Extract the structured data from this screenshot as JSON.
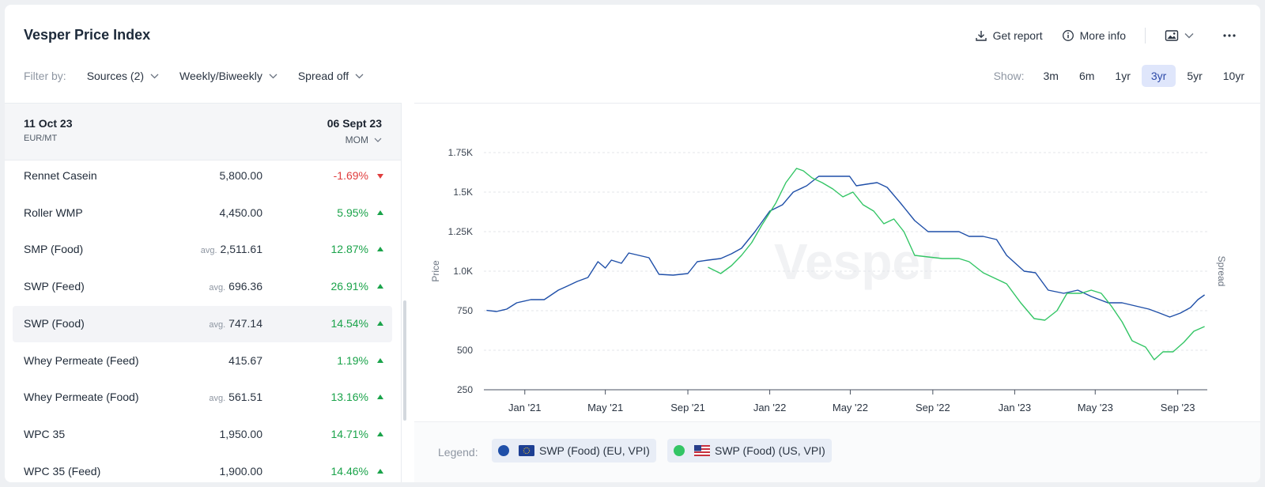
{
  "header": {
    "title": "Vesper Price Index",
    "get_report": "Get report",
    "more_info": "More info"
  },
  "filters": {
    "label": "Filter by:",
    "sources": "Sources (2)",
    "frequency": "Weekly/Biweekly",
    "spread": "Spread off"
  },
  "range": {
    "label": "Show:",
    "options": [
      "3m",
      "6m",
      "1yr",
      "3yr",
      "5yr",
      "10yr"
    ],
    "active": "3yr"
  },
  "table": {
    "date_current": "11 Oct 23",
    "unit": "EUR/MT",
    "date_compare": "06 Sept 23",
    "compare_mode": "MOM",
    "avg_label": "avg.",
    "rows": [
      {
        "name": "Rennet Casein",
        "avg": false,
        "value": "5,800.00",
        "change": "-1.69%",
        "dir": "down"
      },
      {
        "name": "Roller WMP",
        "avg": false,
        "value": "4,450.00",
        "change": "5.95%",
        "dir": "up"
      },
      {
        "name": "SMP (Food)",
        "avg": true,
        "value": "2,511.61",
        "change": "12.87%",
        "dir": "up"
      },
      {
        "name": "SWP (Feed)",
        "avg": true,
        "value": "696.36",
        "change": "26.91%",
        "dir": "up"
      },
      {
        "name": "SWP (Food)",
        "avg": true,
        "value": "747.14",
        "change": "14.54%",
        "dir": "up",
        "selected": true
      },
      {
        "name": "Whey Permeate (Feed)",
        "avg": false,
        "value": "415.67",
        "change": "1.19%",
        "dir": "up"
      },
      {
        "name": "Whey Permeate (Food)",
        "avg": true,
        "value": "561.51",
        "change": "13.16%",
        "dir": "up"
      },
      {
        "name": "WPC 35",
        "avg": false,
        "value": "1,950.00",
        "change": "14.71%",
        "dir": "up"
      },
      {
        "name": "WPC 35 (Feed)",
        "avg": false,
        "value": "1,900.00",
        "change": "14.46%",
        "dir": "up"
      }
    ]
  },
  "chart_data": {
    "type": "line",
    "ylabel": "Price",
    "y2label": "Spread",
    "watermark": "Vesper",
    "ylim": [
      250,
      1750
    ],
    "yticks": [
      250,
      500,
      750,
      1000,
      1250,
      1500,
      1750
    ],
    "ytick_labels": [
      "250",
      "500",
      "750",
      "1.0K",
      "1.25K",
      "1.5K",
      "1.75K"
    ],
    "xlim": [
      "2020-11-01",
      "2023-10-15"
    ],
    "xticks": [
      "2021-01-01",
      "2021-05-01",
      "2021-09-01",
      "2022-01-01",
      "2022-05-01",
      "2022-09-01",
      "2023-01-01",
      "2023-05-01",
      "2023-09-01"
    ],
    "xtick_labels": [
      "Jan '21",
      "May '21",
      "Sep '21",
      "Jan '22",
      "May '22",
      "Sep '22",
      "Jan '23",
      "May '23",
      "Sep '23"
    ],
    "grid": "horizontal dashed",
    "series": [
      {
        "name": "SWP (Food) (EU, VPI)",
        "color": "#1f4fa8",
        "points": [
          [
            "2020-11-05",
            752
          ],
          [
            "2020-11-20",
            745
          ],
          [
            "2020-12-05",
            760
          ],
          [
            "2020-12-20",
            800
          ],
          [
            "2021-01-10",
            820
          ],
          [
            "2021-01-30",
            820
          ],
          [
            "2021-02-20",
            880
          ],
          [
            "2021-03-05",
            905
          ],
          [
            "2021-03-20",
            935
          ],
          [
            "2021-04-05",
            960
          ],
          [
            "2021-04-20",
            1060
          ],
          [
            "2021-05-01",
            1020
          ],
          [
            "2021-05-10",
            1070
          ],
          [
            "2021-05-25",
            1050
          ],
          [
            "2021-06-05",
            1115
          ],
          [
            "2021-06-20",
            1100
          ],
          [
            "2021-07-05",
            1085
          ],
          [
            "2021-07-20",
            980
          ],
          [
            "2021-08-10",
            975
          ],
          [
            "2021-09-01",
            985
          ],
          [
            "2021-09-15",
            1060
          ],
          [
            "2021-10-01",
            1070
          ],
          [
            "2021-10-20",
            1080
          ],
          [
            "2021-11-05",
            1110
          ],
          [
            "2021-11-20",
            1145
          ],
          [
            "2021-12-10",
            1250
          ],
          [
            "2022-01-01",
            1380
          ],
          [
            "2022-01-20",
            1420
          ],
          [
            "2022-02-05",
            1500
          ],
          [
            "2022-02-25",
            1540
          ],
          [
            "2022-03-15",
            1600
          ],
          [
            "2022-04-15",
            1600
          ],
          [
            "2022-04-30",
            1600
          ],
          [
            "2022-05-10",
            1540
          ],
          [
            "2022-05-25",
            1550
          ],
          [
            "2022-06-10",
            1560
          ],
          [
            "2022-06-25",
            1530
          ],
          [
            "2022-07-15",
            1430
          ],
          [
            "2022-08-05",
            1320
          ],
          [
            "2022-08-25",
            1250
          ],
          [
            "2022-09-20",
            1250
          ],
          [
            "2022-10-10",
            1250
          ],
          [
            "2022-10-25",
            1220
          ],
          [
            "2022-11-15",
            1220
          ],
          [
            "2022-12-05",
            1200
          ],
          [
            "2022-12-20",
            1100
          ],
          [
            "2023-01-15",
            1000
          ],
          [
            "2023-02-01",
            990
          ],
          [
            "2023-02-20",
            880
          ],
          [
            "2023-03-15",
            860
          ],
          [
            "2023-04-05",
            880
          ],
          [
            "2023-04-25",
            840
          ],
          [
            "2023-05-20",
            800
          ],
          [
            "2023-06-10",
            800
          ],
          [
            "2023-06-25",
            785
          ],
          [
            "2023-07-20",
            760
          ],
          [
            "2023-08-05",
            735
          ],
          [
            "2023-08-20",
            710
          ],
          [
            "2023-09-05",
            735
          ],
          [
            "2023-09-20",
            770
          ],
          [
            "2023-10-01",
            820
          ],
          [
            "2023-10-11",
            850
          ]
        ]
      },
      {
        "name": "SWP (Food) (US, VPI)",
        "color": "#33c565",
        "points": [
          [
            "2021-10-01",
            1025
          ],
          [
            "2021-10-20",
            985
          ],
          [
            "2021-11-05",
            1035
          ],
          [
            "2021-11-20",
            1100
          ],
          [
            "2021-12-05",
            1180
          ],
          [
            "2021-12-20",
            1290
          ],
          [
            "2022-01-10",
            1430
          ],
          [
            "2022-01-25",
            1560
          ],
          [
            "2022-02-10",
            1650
          ],
          [
            "2022-02-20",
            1635
          ],
          [
            "2022-03-05",
            1590
          ],
          [
            "2022-03-20",
            1560
          ],
          [
            "2022-04-05",
            1520
          ],
          [
            "2022-04-20",
            1470
          ],
          [
            "2022-05-05",
            1500
          ],
          [
            "2022-05-20",
            1420
          ],
          [
            "2022-06-05",
            1380
          ],
          [
            "2022-06-20",
            1300
          ],
          [
            "2022-07-05",
            1330
          ],
          [
            "2022-07-20",
            1250
          ],
          [
            "2022-08-05",
            1100
          ],
          [
            "2022-08-25",
            1090
          ],
          [
            "2022-09-15",
            1080
          ],
          [
            "2022-10-10",
            1080
          ],
          [
            "2022-10-25",
            1060
          ],
          [
            "2022-11-15",
            990
          ],
          [
            "2022-12-05",
            950
          ],
          [
            "2022-12-20",
            920
          ],
          [
            "2023-01-10",
            800
          ],
          [
            "2023-01-30",
            700
          ],
          [
            "2023-02-15",
            690
          ],
          [
            "2023-03-05",
            750
          ],
          [
            "2023-03-20",
            860
          ],
          [
            "2023-04-10",
            860
          ],
          [
            "2023-04-25",
            880
          ],
          [
            "2023-05-10",
            860
          ],
          [
            "2023-05-25",
            780
          ],
          [
            "2023-06-10",
            680
          ],
          [
            "2023-06-25",
            560
          ],
          [
            "2023-07-15",
            520
          ],
          [
            "2023-07-28",
            440
          ],
          [
            "2023-08-10",
            490
          ],
          [
            "2023-08-25",
            490
          ],
          [
            "2023-09-10",
            550
          ],
          [
            "2023-09-25",
            620
          ],
          [
            "2023-10-11",
            650
          ]
        ]
      }
    ]
  },
  "legend": {
    "label": "Legend:",
    "items": [
      {
        "label": "SWP (Food) (EU, VPI)",
        "color": "#1f4fa8",
        "flag": "eu-flag-icon"
      },
      {
        "label": "SWP (Food) (US, VPI)",
        "color": "#33c565",
        "flag": "us-flag-icon"
      }
    ]
  }
}
